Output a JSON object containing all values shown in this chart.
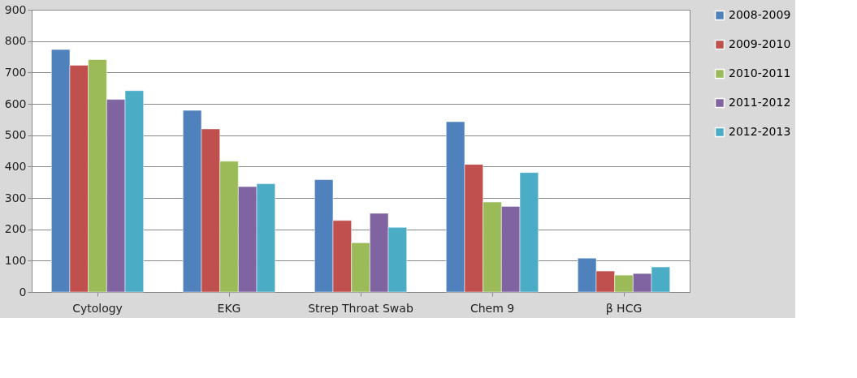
{
  "chart_data": {
    "type": "bar",
    "categories": [
      "Cytology",
      "EKG",
      "Strep Throat Swab",
      "Chem 9",
      "β HCG"
    ],
    "series": [
      {
        "name": "2008-2009",
        "color": "#4f81bd",
        "values": [
          773,
          579,
          358,
          543,
          108
        ]
      },
      {
        "name": "2009-2010",
        "color": "#c0504d",
        "values": [
          723,
          520,
          228,
          407,
          67
        ]
      },
      {
        "name": "2010-2011",
        "color": "#9bbb59",
        "values": [
          741,
          417,
          157,
          287,
          54
        ]
      },
      {
        "name": "2011-2012",
        "color": "#8064a2",
        "values": [
          614,
          336,
          251,
          273,
          59
        ]
      },
      {
        "name": "2012-2013",
        "color": "#4bacc6",
        "values": [
          642,
          345,
          206,
          381,
          80
        ]
      }
    ],
    "ylim": [
      0,
      900
    ],
    "yticks": [
      0,
      100,
      200,
      300,
      400,
      500,
      600,
      700,
      800,
      900
    ],
    "grid": "y",
    "legend": "right"
  }
}
